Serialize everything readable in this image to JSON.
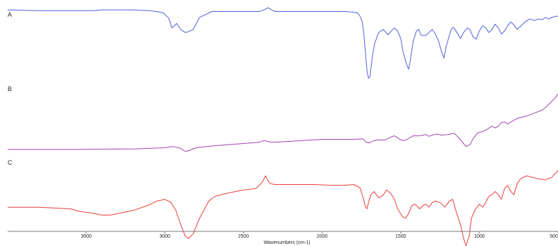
{
  "chart_data": {
    "type": "line",
    "xlabel": "Wavenumbers (cm-1)",
    "ylabel": "",
    "title": "",
    "xlim": [
      4000,
      500
    ],
    "x_reversed": true,
    "grid": false,
    "xticks": [
      3500,
      3000,
      2500,
      2000,
      1500,
      1000,
      500
    ],
    "tick_labels": [
      "3500",
      "3000",
      "2500",
      "2000",
      "1500",
      "1000",
      "500"
    ],
    "panels": [
      {
        "label": "A",
        "color": "#4a5fdc",
        "ylim": [
          0,
          100
        ],
        "series": [
          {
            "x": [
              4000,
              3800,
              3600,
              3450,
              3400,
              3300,
              3200,
              3100,
              3050,
              3010,
              2975,
              2955,
              2940,
              2925,
              2900,
              2870,
              2850,
              2820,
              2780,
              2700,
              2500,
              2400,
              2370,
              2345,
              2320,
              2300,
              2200,
              2000,
              1850,
              1800,
              1775,
              1760,
              1745,
              1735,
              1725,
              1715,
              1705,
              1695,
              1690,
              1680,
              1665,
              1640,
              1610,
              1580,
              1560,
              1540,
              1520,
              1500,
              1485,
              1465,
              1450,
              1440,
              1420,
              1400,
              1385,
              1370,
              1340,
              1320,
              1300,
              1280,
              1260,
              1240,
              1225,
              1210,
              1180,
              1165,
              1140,
              1120,
              1100,
              1075,
              1060,
              1040,
              1020,
              1000,
              980,
              960,
              940,
              920,
              900,
              880,
              860,
              840,
              820,
              800,
              780,
              760,
              740,
              710,
              680,
              650,
              620,
              600,
              580,
              560,
              540,
              520,
              500
            ],
            "y": [
              96,
              95,
              95,
              95,
              96,
              96,
              96,
              95,
              94,
              92,
              85,
              72,
              75,
              78,
              70,
              66,
              67,
              70,
              86,
              94,
              94,
              94,
              96,
              99,
              96,
              94,
              94,
              94,
              94,
              93,
              92,
              88,
              80,
              65,
              40,
              15,
              5,
              8,
              18,
              35,
              52,
              66,
              70,
              63,
              68,
              72,
              68,
              58,
              40,
              25,
              17,
              28,
              55,
              68,
              70,
              62,
              62,
              66,
              70,
              64,
              55,
              40,
              32,
              48,
              70,
              73,
              65,
              58,
              66,
              72,
              70,
              60,
              57,
              68,
              75,
              72,
              66,
              70,
              77,
              72,
              64,
              68,
              75,
              80,
              76,
              70,
              74,
              80,
              84,
              82,
              84,
              83,
              86,
              84,
              86,
              87,
              88
            ]
          }
        ]
      },
      {
        "label": "B",
        "color": "#a040b0",
        "ylim": [
          0,
          100
        ],
        "series": [
          {
            "x": [
              4000,
              3600,
              3200,
              3000,
              2950,
              2900,
              2870,
              2840,
              2800,
              2700,
              2600,
              2500,
              2400,
              2370,
              2340,
              2310,
              2250,
              2000,
              1800,
              1740,
              1720,
              1700,
              1680,
              1650,
              1600,
              1560,
              1540,
              1500,
              1480,
              1460,
              1420,
              1380,
              1340,
              1320,
              1300,
              1270,
              1240,
              1200,
              1160,
              1140,
              1110,
              1085,
              1060,
              1040,
              1010,
              980,
              950,
              920,
              900,
              880,
              860,
              840,
              820,
              800,
              760,
              700,
              650,
              600,
              560,
              520,
              500
            ],
            "y": [
              1,
              1,
              2,
              4,
              6,
              3,
              -3,
              0,
              4,
              7,
              9,
              11,
              13,
              16,
              14,
              13,
              14,
              18,
              18,
              19,
              13,
              12,
              15,
              17,
              17,
              22,
              24,
              17,
              16,
              18,
              24,
              24,
              26,
              23,
              25,
              27,
              25,
              26,
              28,
              23,
              14,
              6,
              9,
              19,
              29,
              31,
              35,
              40,
              37,
              40,
              46,
              47,
              44,
              47,
              53,
              57,
              62,
              67,
              76,
              87,
              94
            ]
          }
        ]
      },
      {
        "label": "C",
        "color": "#ec3a3a",
        "ylim": [
          0,
          100
        ],
        "series": [
          {
            "x": [
              4000,
              3800,
              3600,
              3550,
              3450,
              3400,
              3350,
              3300,
              3200,
              3100,
              3050,
              3000,
              2960,
              2930,
              2900,
              2870,
              2850,
              2820,
              2780,
              2720,
              2680,
              2600,
              2500,
              2420,
              2380,
              2360,
              2345,
              2330,
              2300,
              2200,
              2050,
              1950,
              1850,
              1800,
              1760,
              1740,
              1725,
              1715,
              1705,
              1690,
              1670,
              1640,
              1610,
              1590,
              1565,
              1540,
              1520,
              1490,
              1470,
              1450,
              1430,
              1410,
              1380,
              1360,
              1340,
              1320,
              1300,
              1280,
              1250,
              1220,
              1190,
              1170,
              1150,
              1120,
              1100,
              1085,
              1065,
              1050,
              1030,
              1000,
              980,
              960,
              940,
              920,
              900,
              880,
              860,
              840,
              820,
              800,
              780,
              760,
              740,
              700,
              660,
              620,
              580,
              540,
              500
            ],
            "y": [
              52,
              52,
              50,
              47,
              44,
              42,
              42,
              44,
              48,
              55,
              60,
              62,
              58,
              48,
              30,
              15,
              12,
              18,
              38,
              60,
              66,
              70,
              74,
              76,
              84,
              92,
              86,
              82,
              81,
              81,
              81,
              80,
              80,
              81,
              77,
              65,
              53,
              50,
              58,
              68,
              72,
              64,
              68,
              74,
              70,
              62,
              50,
              40,
              38,
              44,
              54,
              56,
              50,
              54,
              56,
              52,
              58,
              60,
              58,
              52,
              60,
              62,
              48,
              30,
              12,
              3,
              15,
              38,
              48,
              56,
              52,
              58,
              66,
              68,
              72,
              68,
              62,
              76,
              80,
              72,
              68,
              82,
              88,
              92,
              90,
              88,
              87,
              90,
              99
            ]
          }
        ]
      }
    ]
  }
}
